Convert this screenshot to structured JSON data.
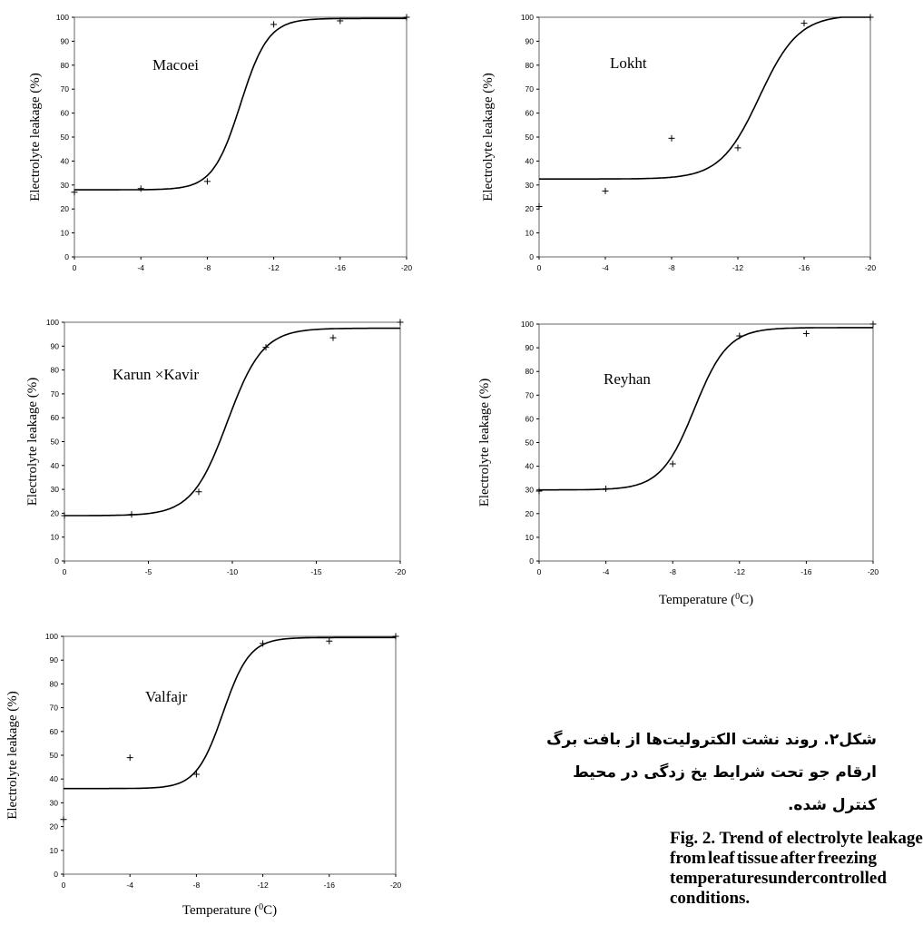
{
  "chart_data": [
    {
      "type": "scatter",
      "title": "Macoei",
      "ylabel": "Electrolyte leakage (%)",
      "xlabel": "",
      "x_ticks": [
        "0",
        "-4",
        "-8",
        "-12",
        "-16",
        "-20"
      ],
      "y_ticks": [
        "0",
        "10",
        "20",
        "30",
        "40",
        "50",
        "60",
        "70",
        "80",
        "90",
        "100"
      ],
      "xlim": [
        0,
        -20
      ],
      "ylim": [
        0,
        100
      ],
      "points": {
        "x": [
          0,
          -4,
          -8,
          -12,
          -16,
          -20
        ],
        "y": [
          27,
          28.5,
          31.5,
          97,
          98.5,
          100
        ]
      },
      "fit": {
        "low": 28,
        "high": 99.5,
        "mid": -10,
        "k": 1.2
      }
    },
    {
      "type": "scatter",
      "title": "Lokht",
      "ylabel": "Electrolyte leakage (%)",
      "xlabel": "",
      "x_ticks": [
        "0",
        "-4",
        "-8",
        "-12",
        "-16",
        "-20"
      ],
      "y_ticks": [
        "0",
        "10",
        "20",
        "30",
        "40",
        "50",
        "60",
        "70",
        "80",
        "90",
        "100"
      ],
      "xlim": [
        0,
        -20
      ],
      "ylim": [
        0,
        100
      ],
      "points": {
        "x": [
          0,
          -4,
          -8,
          -12,
          -16,
          -20
        ],
        "y": [
          21,
          27.5,
          49.5,
          45.5,
          97.5,
          100
        ]
      },
      "fit": {
        "low": 32.5,
        "high": 101,
        "mid": -13.3,
        "k": 0.85
      }
    },
    {
      "type": "scatter",
      "title": "Karun ×Kavir",
      "ylabel": "Electrolyte leakage (%)",
      "xlabel": "",
      "x_ticks": [
        "0",
        "-5",
        "-10",
        "-15",
        "-20"
      ],
      "y_ticks": [
        "0",
        "10",
        "20",
        "30",
        "40",
        "50",
        "60",
        "70",
        "80",
        "90",
        "100"
      ],
      "xlim": [
        0,
        -20
      ],
      "ylim": [
        0,
        100
      ],
      "points": {
        "x": [
          0,
          -4,
          -8,
          -12,
          -16,
          -20
        ],
        "y": [
          19,
          19.5,
          29,
          89.5,
          93.5,
          100
        ]
      },
      "fit": {
        "low": 19,
        "high": 97.5,
        "mid": -9.7,
        "k": 0.95
      }
    },
    {
      "type": "scatter",
      "title": "Reyhan",
      "ylabel": "Electrolyte leakage (%)",
      "xlabel": "Temperature (0C)",
      "x_ticks": [
        "0",
        "-4",
        "-8",
        "-12",
        "-16",
        "-20"
      ],
      "y_ticks": [
        "0",
        "10",
        "20",
        "30",
        "40",
        "50",
        "60",
        "70",
        "80",
        "90",
        "100"
      ],
      "xlim": [
        0,
        -20
      ],
      "ylim": [
        0,
        100
      ],
      "points": {
        "x": [
          0,
          -4,
          -8,
          -12,
          -16,
          -20
        ],
        "y": [
          29.5,
          30.5,
          41,
          95,
          96,
          100
        ]
      },
      "fit": {
        "low": 30,
        "high": 98.5,
        "mid": -9.3,
        "k": 1.0
      }
    },
    {
      "type": "scatter",
      "title": "Valfajr",
      "ylabel": "Electrolyte leakage (%)",
      "xlabel": "Temperature (0C)",
      "x_ticks": [
        "0",
        "-4",
        "-8",
        "-12",
        "-16",
        "-20"
      ],
      "y_ticks": [
        "0",
        "10",
        "20",
        "30",
        "40",
        "50",
        "60",
        "70",
        "80",
        "90",
        "100"
      ],
      "xlim": [
        0,
        -20
      ],
      "ylim": [
        0,
        100
      ],
      "points": {
        "x": [
          0,
          -4,
          -8,
          -12,
          -16,
          -20
        ],
        "y": [
          23,
          49,
          42,
          97,
          98,
          100
        ]
      },
      "fit": {
        "low": 36,
        "high": 99.5,
        "mid": -9.6,
        "k": 1.25
      }
    }
  ],
  "caption": {
    "fa_lines": [
      "شکل۲. روند نشت الکترولیت‌ها از بافت برگ",
      "ارقام جو تحت شرایط یخ زدگی در محیط",
      "کنترل شده."
    ],
    "en_lines": [
      "Fig. 2. Trend of electrolyte leakage",
      "from leaf tissue after freezing",
      "temperatures under controlled",
      "conditions."
    ]
  }
}
